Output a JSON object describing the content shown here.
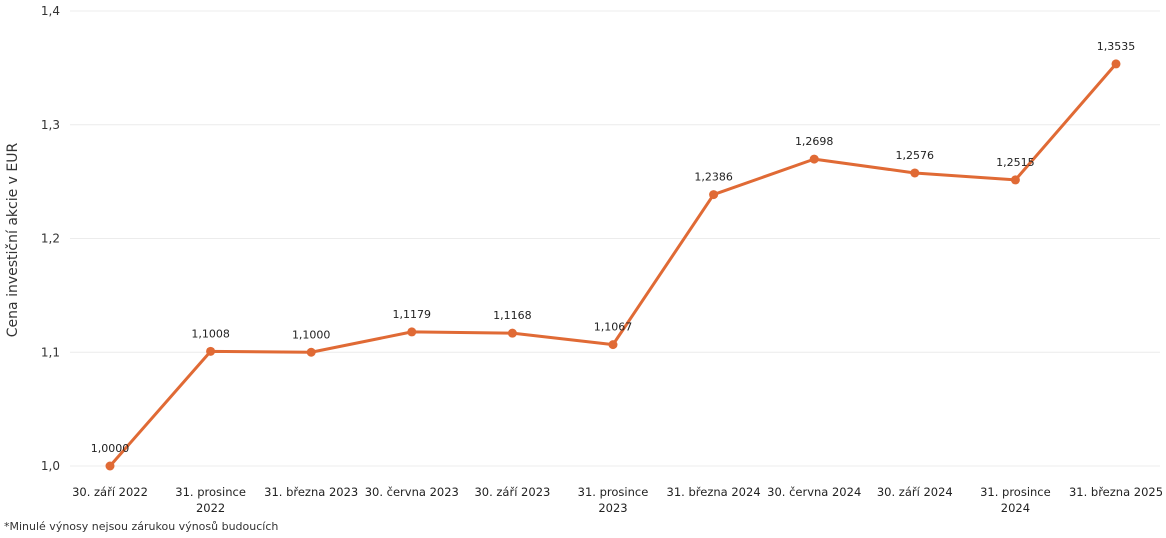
{
  "chart_data": {
    "type": "line",
    "categories": [
      [
        "30. září 2022"
      ],
      [
        "31. prosince",
        "2022"
      ],
      [
        "31. března 2023"
      ],
      [
        "30. června 2023"
      ],
      [
        "30. září 2023"
      ],
      [
        "31. prosince",
        "2023"
      ],
      [
        "31. března 2024"
      ],
      [
        "30. června 2024"
      ],
      [
        "30. září 2024"
      ],
      [
        "31. prosince",
        "2024"
      ],
      [
        "31. března 2025"
      ]
    ],
    "values": [
      1.0,
      1.1008,
      1.1,
      1.1179,
      1.1168,
      1.1067,
      1.2386,
      1.2698,
      1.2576,
      1.2515,
      1.3535
    ],
    "data_labels": [
      "1,0000",
      "1,1008",
      "1,1000",
      "1,1179",
      "1,1168",
      "1,1067",
      "1,2386",
      "1,2698",
      "1,2576",
      "1,2515",
      "1,3535"
    ],
    "ylabel": "Cena investiční akcie v EUR",
    "yticks": [
      1.0,
      1.1,
      1.2,
      1.3,
      1.4
    ],
    "ytick_labels": [
      "1,0",
      "1,1",
      "1,2",
      "1,3",
      "1,4"
    ],
    "ylim": [
      1.0,
      1.4
    ],
    "grid": true,
    "line_color": "#E06A35",
    "grid_color": "#ececec"
  },
  "footnote": "*Minulé výnosy nejsou zárukou výnosů budoucích"
}
